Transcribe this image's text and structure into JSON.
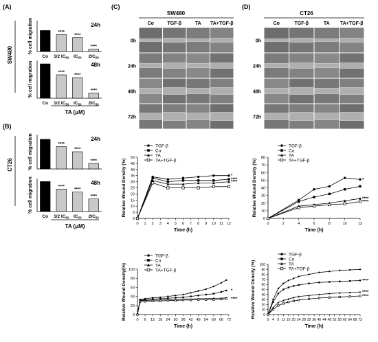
{
  "panels": {
    "A": {
      "label": "(A)",
      "cell_line": "SW480",
      "xlabel": "TA (μM)",
      "charts": [
        {
          "time": "24h",
          "ylabel": "% cell migration"
        },
        {
          "time": "48h",
          "ylabel": "% cell migration"
        }
      ]
    },
    "B": {
      "label": "(B)",
      "cell_line": "CT26",
      "xlabel": "TA (μM)",
      "charts": [
        {
          "time": "24h",
          "ylabel": "% cell migration"
        },
        {
          "time": "48h",
          "ylabel": "% cell migration"
        }
      ]
    },
    "C": {
      "label": "(C)",
      "cell_line": "SW480",
      "columns": [
        "Co",
        "TGF-β",
        "TA",
        "TA+TGF-β"
      ],
      "rows": [
        "0h",
        "24h",
        "48h",
        "72h"
      ]
    },
    "D": {
      "label": "(D)",
      "cell_line": "CT26",
      "columns": [
        "Co",
        "TGF-β",
        "TA",
        "TA+TGF-β"
      ],
      "rows": [
        "0h",
        "24h",
        "48h",
        "72h"
      ]
    }
  },
  "chart_data": [
    {
      "id": "A-24h",
      "type": "bar",
      "categories": [
        "Co",
        "1/2 IC50",
        "IC50",
        "2IC50"
      ],
      "values": [
        68,
        55,
        45,
        8
      ],
      "significance": [
        "",
        "****",
        "****",
        "****"
      ],
      "bar_colors": [
        "#000000",
        "#c8c8c8",
        "#c8c8c8",
        "#c8c8c8"
      ],
      "ylabel": "% cell migration",
      "ylim": [
        0,
        100
      ]
    },
    {
      "id": "A-48h",
      "type": "bar",
      "categories": [
        "Co",
        "1/2 IC50",
        "IC50",
        "2IC50"
      ],
      "values": [
        100,
        68,
        60,
        15
      ],
      "significance": [
        "",
        "****",
        "****",
        "****"
      ],
      "bar_colors": [
        "#000000",
        "#c8c8c8",
        "#c8c8c8",
        "#c8c8c8"
      ],
      "ylabel": "% cell migration",
      "xlabel": "TA (μM)",
      "ylim": [
        0,
        110
      ]
    },
    {
      "id": "B-24h",
      "type": "bar",
      "categories": [
        "Co",
        "1/2 IC50",
        "IC50",
        "2IC50"
      ],
      "values": [
        95,
        72,
        55,
        18
      ],
      "significance": [
        "",
        "****",
        "****",
        "****"
      ],
      "bar_colors": [
        "#000000",
        "#c8c8c8",
        "#c8c8c8",
        "#c8c8c8"
      ],
      "ylabel": "% cell migration",
      "ylim": [
        0,
        110
      ]
    },
    {
      "id": "B-48h",
      "type": "bar",
      "categories": [
        "Co",
        "1/2 IC50",
        "IC50",
        "2IC50"
      ],
      "values": [
        100,
        75,
        65,
        42
      ],
      "significance": [
        "",
        "****",
        "****",
        "****"
      ],
      "bar_colors": [
        "#000000",
        "#c8c8c8",
        "#c8c8c8",
        "#c8c8c8"
      ],
      "ylabel": "% cell migration",
      "xlabel": "TA (μM)",
      "ylim": [
        0,
        110
      ]
    },
    {
      "id": "C-line",
      "type": "line",
      "xlabel": "Time (h)",
      "ylabel": "Relative Wound Density (%)",
      "xlim": [
        0,
        12
      ],
      "ylim": [
        0,
        50
      ],
      "xticks": [
        0,
        1,
        2,
        3,
        4,
        5,
        6,
        7,
        8,
        9,
        10,
        11,
        12
      ],
      "yticks": [
        0,
        5,
        10,
        15,
        20,
        25,
        30,
        35,
        40,
        45,
        50
      ],
      "legend_position": "top-left",
      "series": [
        {
          "name": "TGF-β",
          "marker": "circle-filled",
          "x": [
            0,
            2,
            4,
            6,
            8,
            10,
            12
          ],
          "y": [
            0,
            34,
            32,
            33,
            34,
            35,
            35
          ],
          "sig": "*"
        },
        {
          "name": "Co",
          "marker": "square-filled",
          "x": [
            0,
            2,
            4,
            6,
            8,
            10,
            12
          ],
          "y": [
            0,
            33,
            30,
            31,
            31,
            31,
            32
          ],
          "sig": "****"
        },
        {
          "name": "TA",
          "marker": "triangle-filled",
          "x": [
            0,
            2,
            4,
            6,
            8,
            10,
            12
          ],
          "y": [
            0,
            31,
            28,
            28,
            29,
            29,
            30
          ],
          "sig": "****"
        },
        {
          "name": "TA+TGF-β",
          "marker": "square-open",
          "x": [
            0,
            2,
            4,
            6,
            8,
            10,
            12
          ],
          "y": [
            0,
            29,
            25,
            25,
            25,
            26,
            26
          ],
          "sig": ""
        }
      ]
    },
    {
      "id": "D-line",
      "type": "line",
      "xlabel": "Time (h)",
      "ylabel": "Relative Wound Density (%)",
      "xlim": [
        0,
        12
      ],
      "ylim": [
        0,
        80
      ],
      "xticks": [
        0,
        2,
        4,
        6,
        8,
        10,
        12
      ],
      "yticks": [
        0,
        10,
        20,
        30,
        40,
        50,
        60,
        70,
        80
      ],
      "legend_position": "top-left",
      "series": [
        {
          "name": "TGF-β",
          "marker": "circle-filled",
          "x": [
            0,
            4,
            6,
            8,
            10,
            12
          ],
          "y": [
            0,
            24,
            38,
            42,
            53,
            51
          ],
          "sig": "*"
        },
        {
          "name": "Co",
          "marker": "square-filled",
          "x": [
            0,
            4,
            6,
            8,
            10,
            12
          ],
          "y": [
            0,
            22,
            28,
            32,
            38,
            42
          ],
          "sig": ""
        },
        {
          "name": "TA",
          "marker": "triangle-filled",
          "x": [
            0,
            4,
            6,
            8,
            10,
            12
          ],
          "y": [
            0,
            16,
            18,
            20,
            23,
            26
          ],
          "sig": "****"
        },
        {
          "name": "TA+TGF-β",
          "marker": "square-open",
          "x": [
            0,
            4,
            6,
            8,
            10,
            12
          ],
          "y": [
            0,
            14,
            16,
            18,
            19,
            22
          ],
          "sig": "****"
        }
      ]
    },
    {
      "id": "C-long",
      "type": "line",
      "xlabel": "Time (h)",
      "ylabel": "Relative Wound Density(%)",
      "xlim": [
        0,
        72
      ],
      "ylim": [
        0,
        100
      ],
      "xticks": [
        0,
        6,
        12,
        18,
        24,
        30,
        36,
        42,
        48,
        54,
        60,
        66,
        72
      ],
      "yticks": [
        0,
        20,
        40,
        60,
        80,
        100
      ],
      "legend_position": "top-left",
      "series": [
        {
          "name": "TGF-β",
          "marker": "circle-filled",
          "x": [
            0,
            2,
            6,
            12,
            18,
            24,
            30,
            36,
            42,
            48,
            54,
            60,
            66,
            70
          ],
          "y": [
            0,
            33,
            35,
            37,
            38,
            40,
            42,
            44,
            48,
            52,
            56,
            62,
            70,
            76
          ],
          "sig": ""
        },
        {
          "name": "Co",
          "marker": "square-filled",
          "x": [
            0,
            2,
            6,
            12,
            18,
            24,
            30,
            36,
            42,
            48,
            54,
            60,
            66,
            70
          ],
          "y": [
            0,
            32,
            33,
            34,
            35,
            36,
            37,
            38,
            40,
            42,
            44,
            46,
            50,
            53
          ],
          "sig": "*"
        },
        {
          "name": "TA",
          "marker": "triangle-filled",
          "x": [
            0,
            2,
            6,
            12,
            18,
            24,
            30,
            36,
            42,
            48,
            54,
            60,
            66,
            70
          ],
          "y": [
            0,
            31,
            31,
            32,
            32,
            33,
            33,
            34,
            34,
            35,
            35,
            36,
            36,
            37
          ],
          "sig": ""
        },
        {
          "name": "TA+TGF-β",
          "marker": "square-open",
          "x": [
            0,
            2,
            6,
            12,
            18,
            24,
            30,
            36,
            42,
            48,
            54,
            60,
            66,
            70
          ],
          "y": [
            0,
            28,
            29,
            30,
            30,
            31,
            31,
            32,
            32,
            33,
            33,
            33,
            34,
            35
          ],
          "sig": "****"
        }
      ]
    },
    {
      "id": "D-long",
      "type": "line",
      "xlabel": "Time (h)",
      "ylabel": "Relative Wound Density (%)",
      "xlim": [
        0,
        72
      ],
      "ylim": [
        0,
        100
      ],
      "xticks": [
        0,
        4,
        8,
        12,
        16,
        20,
        24,
        28,
        32,
        36,
        40,
        44,
        48,
        52,
        56,
        60,
        64,
        68,
        72
      ],
      "yticks": [
        0,
        10,
        20,
        30,
        40,
        50,
        60,
        70,
        80,
        90,
        100
      ],
      "legend_position": "top-left",
      "series": [
        {
          "name": "TGF-β",
          "marker": "circle-filled",
          "x": [
            0,
            4,
            8,
            12,
            16,
            20,
            24,
            32,
            40,
            48,
            56,
            64,
            72
          ],
          "y": [
            0,
            30,
            52,
            62,
            68,
            72,
            76,
            80,
            84,
            86,
            88,
            89,
            90
          ],
          "sig": ""
        },
        {
          "name": "Co",
          "marker": "square-filled",
          "x": [
            0,
            4,
            8,
            12,
            16,
            20,
            24,
            32,
            40,
            48,
            56,
            64,
            72
          ],
          "y": [
            0,
            25,
            42,
            50,
            54,
            57,
            59,
            62,
            64,
            65,
            66,
            67,
            68
          ],
          "sig": "****"
        },
        {
          "name": "TA",
          "marker": "triangle-filled",
          "x": [
            0,
            4,
            8,
            12,
            16,
            20,
            24,
            32,
            40,
            48,
            56,
            64,
            72
          ],
          "y": [
            0,
            14,
            24,
            28,
            31,
            34,
            36,
            38,
            40,
            42,
            43,
            44,
            45
          ],
          "sig": "****"
        },
        {
          "name": "TA+TGF-β",
          "marker": "square-open",
          "x": [
            0,
            4,
            8,
            12,
            16,
            20,
            24,
            32,
            40,
            48,
            56,
            64,
            72
          ],
          "y": [
            0,
            10,
            18,
            22,
            25,
            27,
            29,
            31,
            33,
            34,
            35,
            36,
            37
          ],
          "sig": "****"
        }
      ]
    }
  ]
}
